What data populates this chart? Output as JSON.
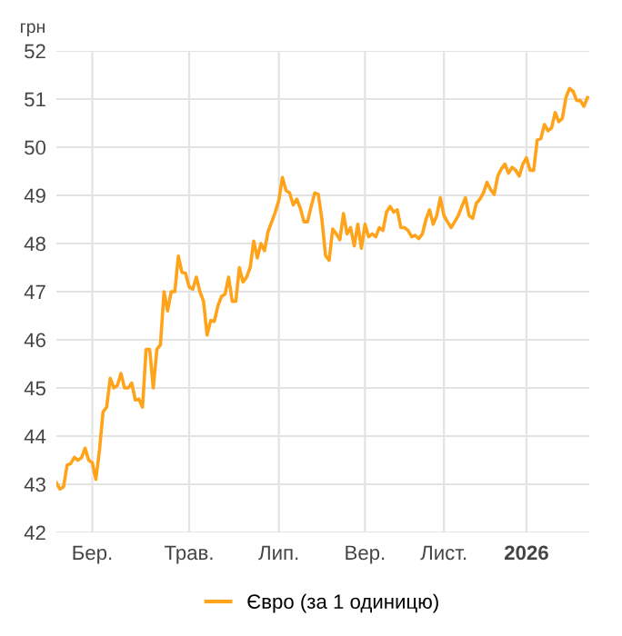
{
  "chart_data": {
    "type": "line",
    "ylabel": "грн",
    "categories": [
      null,
      null,
      null,
      null,
      null,
      null,
      null,
      null,
      null,
      null,
      "Бер.",
      null,
      null,
      null,
      null,
      null,
      null,
      null,
      null,
      null,
      null,
      null,
      null,
      null,
      null,
      null,
      null,
      null,
      null,
      null,
      null,
      null,
      null,
      null,
      null,
      null,
      null,
      "Трав.",
      null,
      null,
      null,
      null,
      null,
      null,
      null,
      null,
      null,
      null,
      null,
      null,
      null,
      null,
      null,
      null,
      null,
      null,
      null,
      null,
      null,
      null,
      null,
      null,
      "Лип.",
      null,
      null,
      null,
      null,
      null,
      null,
      null,
      null,
      null,
      null,
      null,
      null,
      null,
      null,
      null,
      null,
      null,
      null,
      null,
      null,
      null,
      null,
      null,
      "Вер.",
      null,
      null,
      null,
      null,
      null,
      null,
      null,
      null,
      null,
      null,
      null,
      null,
      null,
      null,
      null,
      null,
      null,
      null,
      null,
      null,
      null,
      "Лист.",
      null,
      null,
      null,
      null,
      null,
      null,
      null,
      null,
      null,
      null,
      null,
      null,
      null,
      null,
      null,
      null,
      null,
      null,
      null,
      null,
      null,
      null,
      "2026",
      null,
      null,
      null,
      null,
      null,
      null,
      null,
      null,
      null,
      null,
      null,
      null,
      null,
      null,
      null,
      null,
      null
    ],
    "series": [
      {
        "name": "Євро (за 1 одиницю)",
        "color": "#ffa31a",
        "values": [
          43.03,
          42.9,
          42.95,
          43.4,
          43.43,
          43.56,
          43.5,
          43.55,
          43.75,
          43.5,
          43.45,
          43.1,
          43.7,
          44.5,
          44.6,
          45.2,
          45.0,
          45.05,
          45.3,
          45.0,
          45.0,
          45.1,
          44.75,
          44.77,
          44.6,
          45.8,
          45.8,
          45.0,
          45.8,
          45.9,
          47.0,
          46.6,
          47.0,
          47.0,
          47.74,
          47.4,
          47.38,
          47.1,
          47.05,
          47.3,
          47.0,
          46.8,
          46.1,
          46.4,
          46.38,
          46.7,
          46.9,
          46.95,
          47.3,
          46.8,
          46.8,
          47.5,
          47.2,
          47.3,
          47.5,
          48.05,
          47.7,
          48.0,
          47.85,
          48.25,
          48.45,
          48.65,
          48.9,
          49.37,
          49.1,
          49.05,
          48.8,
          48.92,
          48.73,
          48.45,
          48.45,
          48.77,
          49.05,
          49.02,
          48.5,
          47.75,
          47.65,
          48.3,
          48.2,
          48.08,
          48.62,
          48.2,
          48.33,
          47.95,
          48.4,
          47.9,
          48.4,
          48.14,
          48.2,
          48.14,
          48.33,
          48.27,
          48.65,
          48.77,
          48.65,
          48.7,
          48.33,
          48.33,
          48.27,
          48.14,
          48.17,
          48.1,
          48.2,
          48.5,
          48.7,
          48.4,
          48.58,
          48.95,
          48.58,
          48.45,
          48.33,
          48.45,
          48.58,
          48.77,
          48.95,
          48.58,
          48.52,
          48.83,
          48.92,
          49.05,
          49.27,
          49.12,
          49.02,
          49.4,
          49.55,
          49.65,
          49.46,
          49.58,
          49.52,
          49.4,
          49.65,
          49.78,
          49.52,
          49.52,
          50.15,
          50.18,
          50.47,
          50.34,
          50.4,
          50.72,
          50.53,
          50.6,
          51.03,
          51.22,
          51.16,
          50.97,
          50.97,
          50.85,
          51.03
        ]
      }
    ],
    "ylim": [
      42,
      52
    ],
    "yticks": [
      42,
      43,
      44,
      45,
      46,
      47,
      48,
      49,
      50,
      51,
      52
    ],
    "grid": true,
    "legend": "bottom",
    "marker": "none",
    "line_style": "solid"
  }
}
